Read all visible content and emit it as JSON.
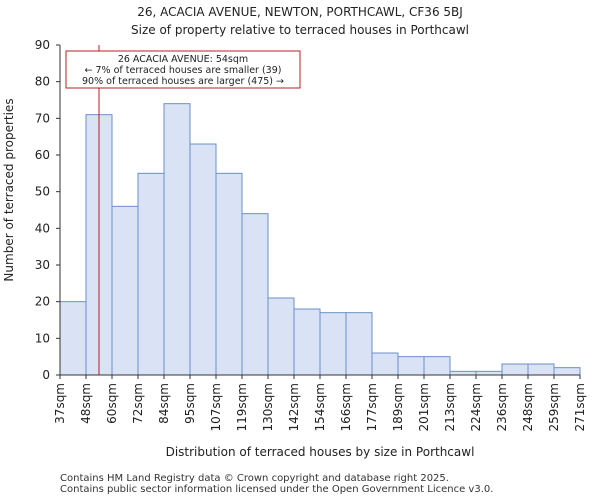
{
  "chart_data": {
    "type": "histogram",
    "title": [
      "26, ACACIA AVENUE, NEWTON, PORTHCAWL, CF36 5BJ",
      "Size of property relative to terraced houses in Porthcawl"
    ],
    "xlabel": "Distribution of terraced houses by size in Porthcawl",
    "ylabel": "Number of terraced properties",
    "categories": [
      "37sqm",
      "48sqm",
      "60sqm",
      "72sqm",
      "84sqm",
      "95sqm",
      "107sqm",
      "119sqm",
      "130sqm",
      "142sqm",
      "154sqm",
      "166sqm",
      "177sqm",
      "189sqm",
      "201sqm",
      "213sqm",
      "224sqm",
      "236sqm",
      "248sqm",
      "259sqm",
      "271sqm"
    ],
    "values": [
      20,
      71,
      46,
      55,
      74,
      63,
      55,
      44,
      21,
      18,
      17,
      17,
      6,
      5,
      5,
      1,
      1,
      3,
      3,
      2
    ],
    "ylim": [
      0,
      90
    ],
    "yticks": [
      0,
      10,
      20,
      30,
      40,
      50,
      60,
      70,
      80,
      90
    ],
    "grid": false,
    "bar_color": "#dae3f5",
    "bar_edge_color": "#6b8fc7",
    "marker": {
      "value_sqm": 54,
      "color": "#b22222",
      "annotation": [
        "26 ACACIA AVENUE: 54sqm",
        "← 7% of terraced houses are smaller (39)",
        "90% of terraced houses are larger (475) →"
      ]
    }
  },
  "footer": [
    "Contains HM Land Registry data © Crown copyright and database right 2025.",
    "Contains public sector information licensed under the Open Government Licence v3.0."
  ]
}
